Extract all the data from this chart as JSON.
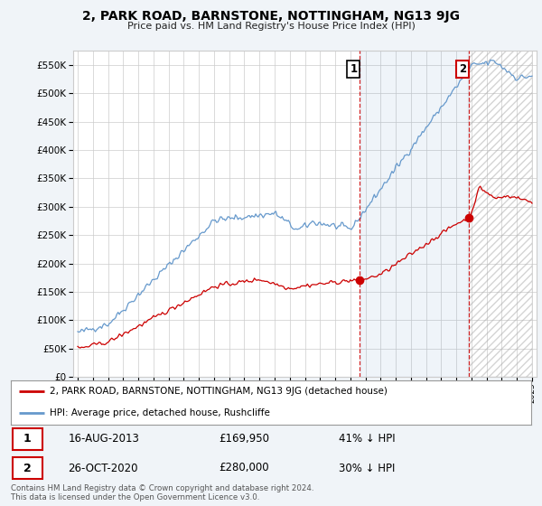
{
  "title": "2, PARK ROAD, BARNSTONE, NOTTINGHAM, NG13 9JG",
  "subtitle": "Price paid vs. HM Land Registry's House Price Index (HPI)",
  "legend_line1": "2, PARK ROAD, BARNSTONE, NOTTINGHAM, NG13 9JG (detached house)",
  "legend_line2": "HPI: Average price, detached house, Rushcliffe",
  "annotation1_date": "16-AUG-2013",
  "annotation1_price": "£169,950",
  "annotation1_hpi": "41% ↓ HPI",
  "annotation2_date": "26-OCT-2020",
  "annotation2_price": "£280,000",
  "annotation2_hpi": "30% ↓ HPI",
  "footnote": "Contains HM Land Registry data © Crown copyright and database right 2024.\nThis data is licensed under the Open Government Licence v3.0.",
  "red_color": "#cc0000",
  "blue_color": "#6699cc",
  "bg_color": "#f0f4f8",
  "plot_bg": "#ffffff",
  "grid_color": "#cccccc",
  "ylim": [
    0,
    575000
  ],
  "yticks": [
    0,
    50000,
    100000,
    150000,
    200000,
    250000,
    300000,
    350000,
    400000,
    450000,
    500000,
    550000
  ],
  "sale1_x": 2013.62,
  "sale1_y": 169950,
  "sale2_x": 2020.82,
  "sale2_y": 280000,
  "xmin": 1994.7,
  "xmax": 2025.3,
  "hatch_start": 2020.82
}
